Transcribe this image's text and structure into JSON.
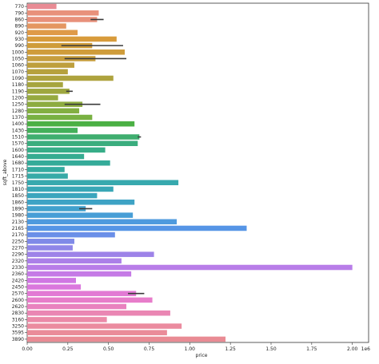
{
  "chart_data": {
    "type": "bar",
    "orientation": "horizontal",
    "xlabel": "price",
    "ylabel": "sqft_above",
    "x_scale_label": "1e6",
    "xlim": [
      0,
      2.1
    ],
    "xticks": [
      "0.00",
      "0.25",
      "0.50",
      "0.75",
      "1.00",
      "1.25",
      "1.50",
      "1.75",
      "2.00"
    ],
    "grid": false,
    "legend": "none",
    "categories": [
      "770",
      "790",
      "860",
      "890",
      "920",
      "930",
      "990",
      "1000",
      "1050",
      "1060",
      "1070",
      "1090",
      "1180",
      "1190",
      "1200",
      "1250",
      "1280",
      "1370",
      "1400",
      "1430",
      "1510",
      "1570",
      "1600",
      "1640",
      "1680",
      "1710",
      "1715",
      "1750",
      "1810",
      "1850",
      "1860",
      "1890",
      "1980",
      "2130",
      "2165",
      "2170",
      "2250",
      "2270",
      "2290",
      "2320",
      "2330",
      "2360",
      "2420",
      "2450",
      "2570",
      "2600",
      "2620",
      "2830",
      "3160",
      "3250",
      "3595",
      "3890"
    ],
    "values": [
      0.18,
      0.44,
      0.43,
      0.24,
      0.31,
      0.55,
      0.4,
      0.6,
      0.42,
      0.29,
      0.25,
      0.53,
      0.22,
      0.26,
      0.19,
      0.34,
      0.32,
      0.4,
      0.66,
      0.31,
      0.69,
      0.68,
      0.48,
      0.35,
      0.51,
      0.23,
      0.25,
      0.93,
      0.53,
      0.43,
      0.66,
      0.36,
      0.65,
      0.92,
      1.35,
      0.54,
      0.29,
      0.28,
      0.78,
      0.58,
      2.0,
      0.64,
      0.3,
      0.33,
      0.67,
      0.77,
      0.61,
      0.88,
      0.49,
      0.95,
      0.86,
      1.22
    ],
    "errors": [
      null,
      null,
      [
        0.39,
        0.47
      ],
      null,
      null,
      null,
      [
        0.21,
        0.59
      ],
      null,
      [
        0.23,
        0.61
      ],
      null,
      null,
      null,
      null,
      [
        0.24,
        0.28
      ],
      null,
      [
        0.23,
        0.45
      ],
      null,
      null,
      null,
      null,
      [
        0.68,
        0.7
      ],
      null,
      null,
      null,
      null,
      null,
      null,
      null,
      null,
      null,
      null,
      [
        0.32,
        0.4
      ],
      null,
      null,
      null,
      null,
      null,
      null,
      null,
      null,
      null,
      null,
      null,
      null,
      [
        0.62,
        0.72
      ],
      null,
      null,
      null,
      null,
      null,
      null,
      null
    ],
    "colors": [
      "#e98b94",
      "#e8917b",
      "#e8917b",
      "#e49661",
      "#df9a48",
      "#d89b3b",
      "#cf9c3a",
      "#cf9c3a",
      "#c79e3d",
      "#be9f3d",
      "#b6a13d",
      "#aea33e",
      "#a6a53e",
      "#9ea73f",
      "#96aa40",
      "#8dac40",
      "#83af41",
      "#79b142",
      "#4bb044",
      "#44b05a",
      "#3fae6f",
      "#3aad7e",
      "#37ad88",
      "#36ac91",
      "#35ab99",
      "#35aba0",
      "#36aaa7",
      "#37a9ae",
      "#39a7b6",
      "#3ba5bd",
      "#3ea3c5",
      "#42a1cd",
      "#479ed6",
      "#4e9ade",
      "#5695e6",
      "#6a8fe8",
      "#7f8ae8",
      "#8f86e8",
      "#9d83e8",
      "#ab80e8",
      "#b87de8",
      "#c57ae6",
      "#d078e3",
      "#da78dd",
      "#e27ad4",
      "#e77dca",
      "#e982bf",
      "#ea86b3",
      "#eb8aa8",
      "#eb8b9f",
      "#ea8c99",
      "#e98b94"
    ]
  }
}
